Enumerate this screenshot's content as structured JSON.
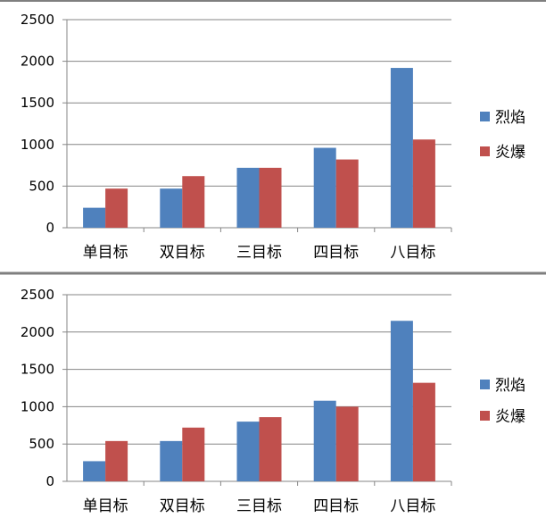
{
  "chart_data": [
    {
      "type": "bar",
      "categories": [
        "单目标",
        "双目标",
        "三目标",
        "四目标",
        "八目标"
      ],
      "series": [
        {
          "name": "烈焰",
          "values": [
            240,
            470,
            720,
            960,
            1920
          ]
        },
        {
          "name": "炎爆",
          "values": [
            470,
            620,
            720,
            820,
            1060
          ]
        }
      ],
      "ylim": [
        0,
        2500
      ],
      "yticks": [
        "0",
        "500",
        "1000",
        "1500",
        "2000",
        "2500"
      ],
      "grid": true,
      "legend_position": "right",
      "colors": [
        "#4f81bd",
        "#c0504d"
      ]
    },
    {
      "type": "bar",
      "categories": [
        "单目标",
        "双目标",
        "三目标",
        "四目标",
        "八目标"
      ],
      "series": [
        {
          "name": "烈焰",
          "values": [
            270,
            540,
            800,
            1080,
            2150
          ]
        },
        {
          "name": "炎爆",
          "values": [
            540,
            720,
            860,
            1000,
            1320
          ]
        }
      ],
      "ylim": [
        0,
        2500
      ],
      "yticks": [
        "0",
        "500",
        "1000",
        "1500",
        "2000",
        "2500"
      ],
      "grid": true,
      "legend_position": "right",
      "colors": [
        "#4f81bd",
        "#c0504d"
      ]
    }
  ]
}
